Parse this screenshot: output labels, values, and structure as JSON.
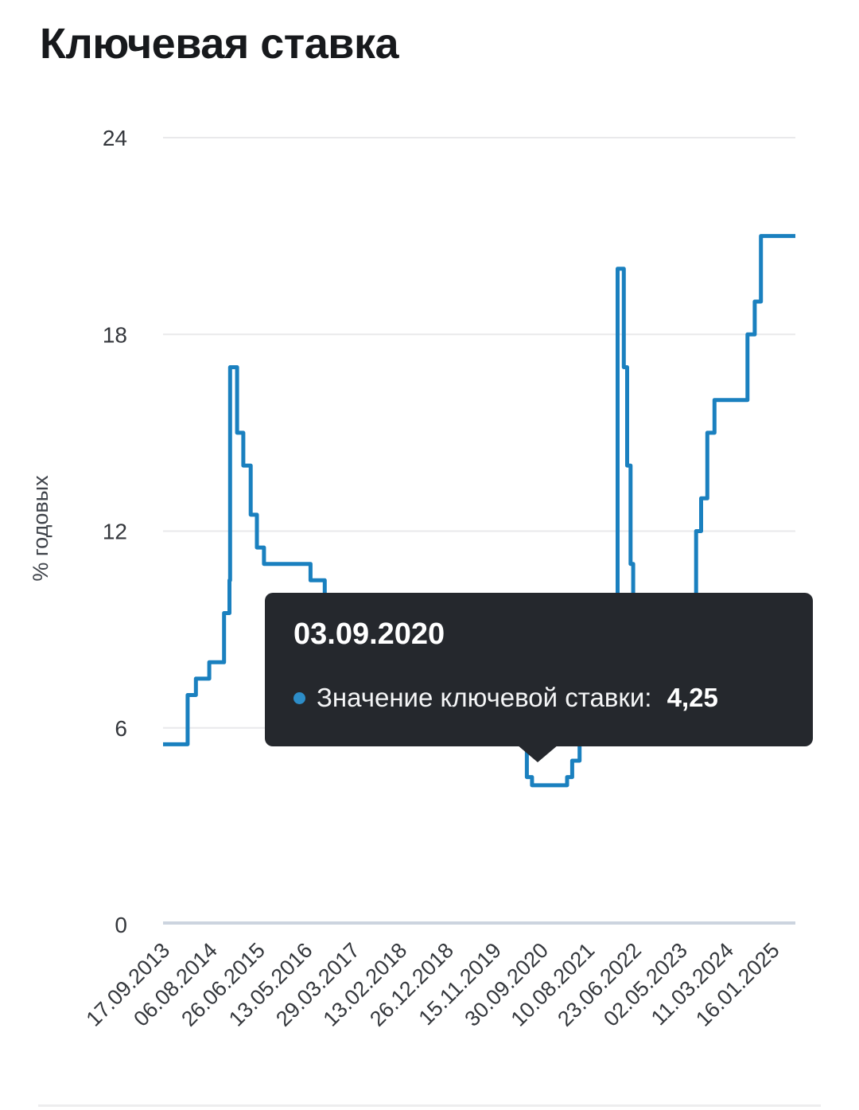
{
  "page": {
    "title": "Ключевая ставка"
  },
  "chart_data": {
    "type": "line",
    "step": "step-after",
    "title": "Ключевая ставка",
    "xlabel": "",
    "ylabel": "% годовых",
    "ylim": [
      0,
      24
    ],
    "yticks": [
      0,
      6,
      12,
      18,
      24
    ],
    "grid": "horizontal",
    "legend": "none",
    "x_domain": [
      "17.09.2013",
      "19.06.2025"
    ],
    "xtick_labels": [
      "17.09.2013",
      "06.08.2014",
      "26.06.2015",
      "13.05.2016",
      "29.03.2017",
      "13.02.2018",
      "26.12.2018",
      "15.11.2019",
      "30.09.2020",
      "10.08.2021",
      "23.06.2022",
      "02.05.2023",
      "11.03.2024",
      "16.01.2025"
    ],
    "series": [
      {
        "name": "Значение ключевой ставки",
        "color": "#1a80bf",
        "points": [
          [
            "17.09.2013",
            5.5
          ],
          [
            "03.03.2014",
            7
          ],
          [
            "28.04.2014",
            7.5
          ],
          [
            "28.07.2014",
            8
          ],
          [
            "05.11.2014",
            9.5
          ],
          [
            "12.12.2014",
            10.5
          ],
          [
            "16.12.2014",
            17
          ],
          [
            "02.02.2015",
            15
          ],
          [
            "16.03.2015",
            14
          ],
          [
            "05.05.2015",
            12.5
          ],
          [
            "16.06.2015",
            11.5
          ],
          [
            "03.08.2015",
            11
          ],
          [
            "14.06.2016",
            10.5
          ],
          [
            "19.09.2016",
            10
          ],
          [
            "27.03.2017",
            9.75
          ],
          [
            "02.05.2017",
            9.25
          ],
          [
            "19.06.2017",
            9
          ],
          [
            "18.09.2017",
            8.5
          ],
          [
            "30.10.2017",
            8.25
          ],
          [
            "18.12.2017",
            7.75
          ],
          [
            "12.02.2018",
            7.5
          ],
          [
            "26.03.2018",
            7.25
          ],
          [
            "17.09.2018",
            7.5
          ],
          [
            "17.12.2018",
            7.75
          ],
          [
            "17.06.2019",
            7.5
          ],
          [
            "29.07.2019",
            7.25
          ],
          [
            "09.09.2019",
            7
          ],
          [
            "28.10.2019",
            6.5
          ],
          [
            "16.12.2019",
            6.25
          ],
          [
            "10.02.2020",
            6
          ],
          [
            "27.04.2020",
            5.5
          ],
          [
            "22.06.2020",
            4.5
          ],
          [
            "27.07.2020",
            4.25
          ],
          [
            "22.03.2021",
            4.5
          ],
          [
            "26.04.2021",
            5
          ],
          [
            "15.06.2021",
            5.5
          ],
          [
            "26.07.2021",
            6.5
          ],
          [
            "13.09.2021",
            6.75
          ],
          [
            "25.10.2021",
            7.5
          ],
          [
            "20.12.2021",
            8.5
          ],
          [
            "28.02.2022",
            20
          ],
          [
            "11.04.2022",
            17
          ],
          [
            "04.05.2022",
            14
          ],
          [
            "27.05.2022",
            11
          ],
          [
            "14.06.2022",
            9.5
          ],
          [
            "25.07.2022",
            8
          ],
          [
            "19.09.2022",
            7.5
          ],
          [
            "24.07.2023",
            8.5
          ],
          [
            "15.08.2023",
            12
          ],
          [
            "18.09.2023",
            13
          ],
          [
            "30.10.2023",
            15
          ],
          [
            "18.12.2023",
            16
          ],
          [
            "29.07.2024",
            18
          ],
          [
            "16.09.2024",
            19
          ],
          [
            "28.10.2024",
            21
          ]
        ]
      }
    ]
  },
  "tooltip": {
    "date": "03.09.2020",
    "label": "Значение ключевой ставки: ",
    "value": "4,25"
  },
  "colors": {
    "line": "#1a80bf",
    "grid": "#e9e9eb",
    "axis_zero": "#ccd4df",
    "tick_text": "#34373c",
    "title_text": "#17191c",
    "tooltip_bg": "#25282d",
    "tooltip_bullet": "#2d8dc8",
    "divider": "#ededee"
  }
}
